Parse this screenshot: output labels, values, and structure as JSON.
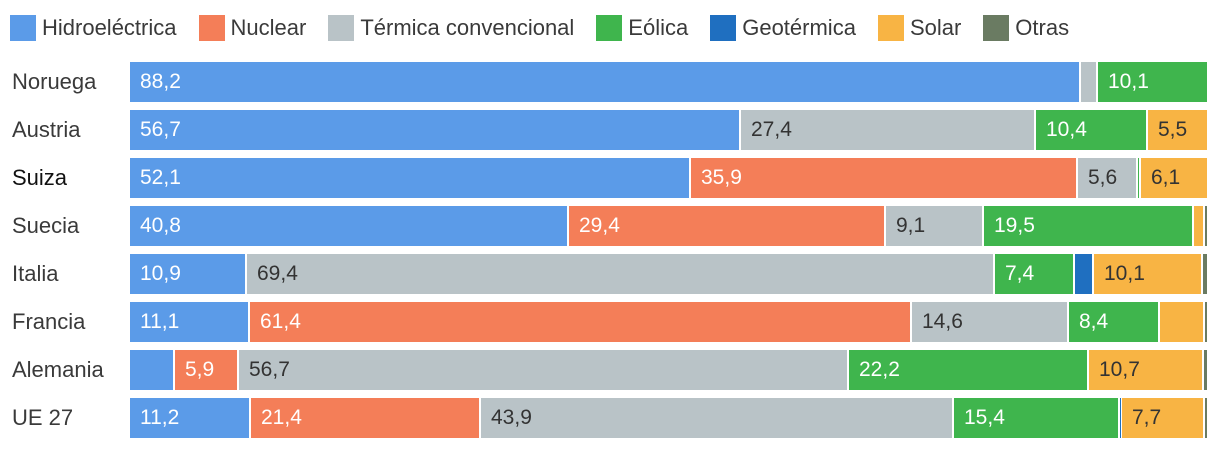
{
  "chart_data": {
    "type": "bar",
    "orientation": "horizontal",
    "stacked": true,
    "unit": "%",
    "legend_position": "top",
    "categories": [
      "Noruega",
      "Austria",
      "Suiza",
      "Suecia",
      "Italia",
      "Francia",
      "Alemania",
      "UE 27"
    ],
    "highlight_category": "Suiza",
    "series": [
      {
        "name": "Hidroeléctrica",
        "key": "hidro",
        "color": "#5b9be8",
        "text_color": "#ffffff",
        "values": [
          88.2,
          56.7,
          52.1,
          40.8,
          10.9,
          11.1,
          4.2,
          11.2
        ],
        "labels": [
          "88,2",
          "56,7",
          "52,1",
          "40,8",
          "10,9",
          "11,1",
          "",
          "11,2"
        ]
      },
      {
        "name": "Nuclear",
        "key": "nuclear",
        "color": "#f47e58",
        "text_color": "#ffffff",
        "values": [
          0,
          0,
          35.9,
          29.4,
          0,
          61.4,
          5.9,
          21.4
        ],
        "labels": [
          "",
          "",
          "35,9",
          "29,4",
          "",
          "61,4",
          "5,9",
          "21,4"
        ]
      },
      {
        "name": "Térmica convencional",
        "key": "termica",
        "color": "#b9c3c7",
        "text_color": "#333333",
        "values": [
          1.6,
          27.4,
          5.6,
          9.1,
          69.4,
          14.6,
          56.7,
          43.9
        ],
        "labels": [
          "",
          "27,4",
          "5,6",
          "9,1",
          "69,4",
          "14,6",
          "56,7",
          "43,9"
        ]
      },
      {
        "name": "Eólica",
        "key": "eolica",
        "color": "#3fb54d",
        "text_color": "#ffffff",
        "values": [
          10.1,
          10.4,
          0.3,
          19.5,
          7.4,
          8.4,
          22.2,
          15.4
        ],
        "labels": [
          "10,1",
          "10,4",
          "",
          "19,5",
          "7,4",
          "8,4",
          "22,2",
          "15,4"
        ]
      },
      {
        "name": "Geotérmica",
        "key": "geotermica",
        "color": "#1f6fc0",
        "text_color": "#ffffff",
        "values": [
          0,
          0,
          0,
          0,
          1.8,
          0,
          0,
          0.2
        ],
        "labels": [
          "",
          "",
          "",
          "",
          "",
          "",
          "",
          ""
        ]
      },
      {
        "name": "Solar",
        "key": "solar",
        "color": "#f8b444",
        "text_color": "#333333",
        "values": [
          0,
          5.5,
          6.1,
          1.0,
          10.1,
          4.2,
          10.7,
          7.7
        ],
        "labels": [
          "",
          "5,5",
          "6,1",
          "",
          "10,1",
          "",
          "10,7",
          "7,7"
        ]
      },
      {
        "name": "Otras",
        "key": "otras",
        "color": "#6a7b62",
        "text_color": "#ffffff",
        "values": [
          0,
          0,
          0,
          0.2,
          0.4,
          0.2,
          0.3,
          0.2
        ],
        "labels": [
          "",
          "",
          "",
          "",
          "",
          "",
          "",
          ""
        ]
      }
    ]
  }
}
